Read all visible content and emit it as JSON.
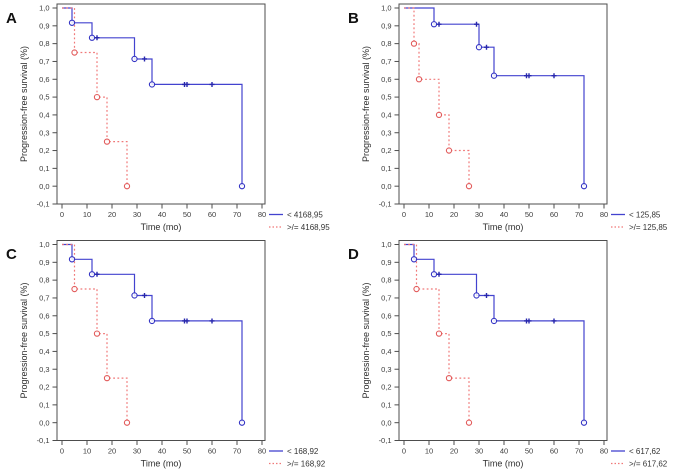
{
  "figure": {
    "background": "#ffffff",
    "description_visible_text_only": true
  },
  "style": {
    "axis_color": "#4d4d4d",
    "tick_label_color": "#3d3d3d",
    "axis_title_color": "#2e2e2e",
    "legend_text_color": "#333333",
    "panel_letter_color": "#111111",
    "blue_line": "#4343cf",
    "blue_marker": "#3434c4",
    "blue_censor": "#2727ad",
    "red_line": "#f07878",
    "red_marker": "#e25c5c"
  },
  "chart_data": [
    {
      "panel_label": "A",
      "type": "line",
      "subtype": "kaplan_meier_step",
      "title": "",
      "xlabel": "Time (mo)",
      "ylabel": "Progression-free survival (%)",
      "xlim": [
        -2,
        81.2
      ],
      "ylim": [
        -0.1,
        1.02
      ],
      "grid": false,
      "legend_position": "bottom-right",
      "xticks": [
        0,
        10,
        20,
        30,
        40,
        50,
        60,
        70,
        80
      ],
      "xtick_labels": [
        "0",
        "10",
        "20",
        "30",
        "40",
        "50",
        "60",
        "70",
        "80"
      ],
      "yticks": [
        1.0,
        0.9,
        0.8,
        0.7,
        0.6,
        0.5,
        0.4,
        0.3,
        0.2,
        0.1,
        0.0,
        -0.1
      ],
      "ytick_labels": [
        "1,0",
        "0,9",
        "0,8",
        "0,7",
        "0,6",
        "0,5",
        "0,4",
        "0,3",
        "0,2",
        "0,1",
        "0,0",
        "-0,1"
      ],
      "cutoff_value": "4168,95",
      "series": [
        {
          "name": "< 4168,95",
          "role": "below-cutoff",
          "color": "#4343cf",
          "marker_color": "#3434c4",
          "censor_color": "#2727ad",
          "line_style": "solid",
          "steps": [
            [
              0,
              1.0
            ],
            [
              4,
              0.917
            ],
            [
              12,
              0.833
            ],
            [
              29,
              0.714
            ],
            [
              36,
              0.571
            ],
            [
              72,
              0.0
            ]
          ],
          "event_markers": [
            [
              4,
              0.917
            ],
            [
              12,
              0.833
            ],
            [
              29,
              0.714
            ],
            [
              36,
              0.571
            ],
            [
              72,
              0.0
            ]
          ],
          "censored_markers": [
            [
              14,
              0.833
            ],
            [
              33,
              0.714
            ],
            [
              49,
              0.571
            ],
            [
              50,
              0.571
            ],
            [
              60,
              0.571
            ]
          ]
        },
        {
          "name": ">/= 4168,95",
          "role": "above-cutoff",
          "color": "#f07878",
          "marker_color": "#e25c5c",
          "censor_color": "#e25c5c",
          "line_style": "dashed",
          "steps": [
            [
              0,
              1.0
            ],
            [
              5,
              0.75
            ],
            [
              14,
              0.5
            ],
            [
              18,
              0.25
            ],
            [
              26,
              0.0
            ]
          ],
          "event_markers": [
            [
              5,
              0.75
            ],
            [
              14,
              0.5
            ],
            [
              18,
              0.25
            ],
            [
              26,
              0.0
            ]
          ],
          "censored_markers": []
        }
      ]
    },
    {
      "panel_label": "B",
      "type": "line",
      "subtype": "kaplan_meier_step",
      "title": "",
      "xlabel": "Time (mo)",
      "ylabel": "Progression-free survival (%)",
      "xlim": [
        -2,
        81.2
      ],
      "ylim": [
        -0.1,
        1.02
      ],
      "grid": false,
      "legend_position": "bottom-right",
      "xticks": [
        0,
        10,
        20,
        30,
        40,
        50,
        60,
        70,
        80
      ],
      "xtick_labels": [
        "0",
        "10",
        "20",
        "30",
        "40",
        "50",
        "60",
        "70",
        "80"
      ],
      "yticks": [
        1.0,
        0.9,
        0.8,
        0.7,
        0.6,
        0.5,
        0.4,
        0.3,
        0.2,
        0.1,
        0.0,
        -0.1
      ],
      "ytick_labels": [
        "1,0",
        "0,9",
        "0,8",
        "0,7",
        "0,6",
        "0,5",
        "0,4",
        "0,3",
        "0,2",
        "0,1",
        "0,0",
        "-0,1"
      ],
      "cutoff_value": "125,85",
      "series": [
        {
          "name": "< 125,85",
          "role": "below-cutoff",
          "color": "#4343cf",
          "marker_color": "#3434c4",
          "censor_color": "#2727ad",
          "line_style": "solid",
          "steps": [
            [
              0,
              1.0
            ],
            [
              12,
              0.909
            ],
            [
              30,
              0.78
            ],
            [
              36,
              0.62
            ],
            [
              72,
              0.0
            ]
          ],
          "event_markers": [
            [
              12,
              0.909
            ],
            [
              30,
              0.78
            ],
            [
              36,
              0.62
            ],
            [
              72,
              0.0
            ]
          ],
          "censored_markers": [
            [
              14,
              0.909
            ],
            [
              29,
              0.909
            ],
            [
              33,
              0.78
            ],
            [
              49,
              0.62
            ],
            [
              50,
              0.62
            ],
            [
              60,
              0.62
            ]
          ]
        },
        {
          "name": ">/= 125,85",
          "role": "above-cutoff",
          "color": "#f07878",
          "marker_color": "#e25c5c",
          "censor_color": "#e25c5c",
          "line_style": "dashed",
          "steps": [
            [
              0,
              1.0
            ],
            [
              4,
              0.8
            ],
            [
              6,
              0.6
            ],
            [
              14,
              0.4
            ],
            [
              18,
              0.2
            ],
            [
              26,
              0.0
            ]
          ],
          "event_markers": [
            [
              4,
              0.8
            ],
            [
              6,
              0.6
            ],
            [
              14,
              0.4
            ],
            [
              18,
              0.2
            ],
            [
              26,
              0.0
            ]
          ],
          "censored_markers": []
        }
      ]
    },
    {
      "panel_label": "C",
      "type": "line",
      "subtype": "kaplan_meier_step",
      "title": "",
      "xlabel": "Time (mo)",
      "ylabel": "Progression-free survival (%)",
      "xlim": [
        -2,
        81.2
      ],
      "ylim": [
        -0.1,
        1.02
      ],
      "grid": false,
      "legend_position": "bottom-right",
      "xticks": [
        0,
        10,
        20,
        30,
        40,
        50,
        60,
        70,
        80
      ],
      "xtick_labels": [
        "0",
        "10",
        "20",
        "30",
        "40",
        "50",
        "60",
        "70",
        "80"
      ],
      "yticks": [
        1.0,
        0.9,
        0.8,
        0.7,
        0.6,
        0.5,
        0.4,
        0.3,
        0.2,
        0.1,
        0.0,
        -0.1
      ],
      "ytick_labels": [
        "1,0",
        "0,9",
        "0,8",
        "0,7",
        "0,6",
        "0,5",
        "0,4",
        "0,3",
        "0,2",
        "0,1",
        "0,0",
        "-0,1"
      ],
      "cutoff_value": "168,92",
      "series": [
        {
          "name": "< 168,92",
          "role": "below-cutoff",
          "color": "#4343cf",
          "marker_color": "#3434c4",
          "censor_color": "#2727ad",
          "line_style": "solid",
          "steps": [
            [
              0,
              1.0
            ],
            [
              4,
              0.917
            ],
            [
              12,
              0.833
            ],
            [
              29,
              0.714
            ],
            [
              36,
              0.571
            ],
            [
              72,
              0.0
            ]
          ],
          "event_markers": [
            [
              4,
              0.917
            ],
            [
              12,
              0.833
            ],
            [
              29,
              0.714
            ],
            [
              36,
              0.571
            ],
            [
              72,
              0.0
            ]
          ],
          "censored_markers": [
            [
              14,
              0.833
            ],
            [
              33,
              0.714
            ],
            [
              49,
              0.571
            ],
            [
              50,
              0.571
            ],
            [
              60,
              0.571
            ]
          ]
        },
        {
          "name": ">/= 168,92",
          "role": "above-cutoff",
          "color": "#f07878",
          "marker_color": "#e25c5c",
          "censor_color": "#e25c5c",
          "line_style": "dashed",
          "steps": [
            [
              0,
              1.0
            ],
            [
              5,
              0.75
            ],
            [
              14,
              0.5
            ],
            [
              18,
              0.25
            ],
            [
              26,
              0.0
            ]
          ],
          "event_markers": [
            [
              5,
              0.75
            ],
            [
              14,
              0.5
            ],
            [
              18,
              0.25
            ],
            [
              26,
              0.0
            ]
          ],
          "censored_markers": []
        }
      ]
    },
    {
      "panel_label": "D",
      "type": "line",
      "subtype": "kaplan_meier_step",
      "title": "",
      "xlabel": "Time (mo)",
      "ylabel": "Progression-free survival (%)",
      "xlim": [
        -2,
        81.2
      ],
      "ylim": [
        -0.1,
        1.02
      ],
      "grid": false,
      "legend_position": "bottom-right",
      "xticks": [
        0,
        10,
        20,
        30,
        40,
        50,
        60,
        70,
        80
      ],
      "xtick_labels": [
        "0",
        "10",
        "20",
        "30",
        "40",
        "50",
        "60",
        "70",
        "80"
      ],
      "yticks": [
        1.0,
        0.9,
        0.8,
        0.7,
        0.6,
        0.5,
        0.4,
        0.3,
        0.2,
        0.1,
        0.0,
        -0.1
      ],
      "ytick_labels": [
        "1,0",
        "0,9",
        "0,8",
        "0,7",
        "0,6",
        "0,5",
        "0,4",
        "0,3",
        "0,2",
        "0,1",
        "0,0",
        "-0,1"
      ],
      "cutoff_value": "617,62",
      "series": [
        {
          "name": "< 617,62",
          "role": "below-cutoff",
          "color": "#4343cf",
          "marker_color": "#3434c4",
          "censor_color": "#2727ad",
          "line_style": "solid",
          "steps": [
            [
              0,
              1.0
            ],
            [
              4,
              0.917
            ],
            [
              12,
              0.833
            ],
            [
              29,
              0.714
            ],
            [
              36,
              0.571
            ],
            [
              72,
              0.0
            ]
          ],
          "event_markers": [
            [
              4,
              0.917
            ],
            [
              12,
              0.833
            ],
            [
              29,
              0.714
            ],
            [
              36,
              0.571
            ],
            [
              72,
              0.0
            ]
          ],
          "censored_markers": [
            [
              14,
              0.833
            ],
            [
              33,
              0.714
            ],
            [
              49,
              0.571
            ],
            [
              50,
              0.571
            ],
            [
              60,
              0.571
            ]
          ]
        },
        {
          "name": ">/= 617,62",
          "role": "above-cutoff",
          "color": "#f07878",
          "marker_color": "#e25c5c",
          "censor_color": "#e25c5c",
          "line_style": "dashed",
          "steps": [
            [
              0,
              1.0
            ],
            [
              5,
              0.75
            ],
            [
              14,
              0.5
            ],
            [
              18,
              0.25
            ],
            [
              26,
              0.0
            ]
          ],
          "event_markers": [
            [
              5,
              0.75
            ],
            [
              14,
              0.5
            ],
            [
              18,
              0.25
            ],
            [
              26,
              0.0
            ]
          ],
          "censored_markers": []
        }
      ]
    }
  ]
}
